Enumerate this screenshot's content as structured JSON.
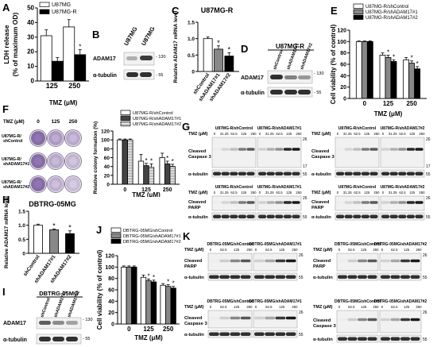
{
  "labels": {
    "A": "A",
    "B": "B",
    "C": "C",
    "D": "D",
    "E": "E",
    "F": "F",
    "G": "G",
    "H": "H",
    "I": "I",
    "J": "J",
    "K": "K"
  },
  "common": {
    "tmz_um": "TMZ (μM)",
    "tmz": "TMZ (μM)",
    "tubulin": "α-tubulin",
    "adam17": "ADAM17",
    "parp": "Cleaved PARP",
    "casp3": "Cleaved Caspase 3"
  },
  "chart_data": [
    {
      "id": "A",
      "type": "bar",
      "ylabel": "LDH release (% of maximum OD)",
      "xlabel": "TMZ (μM)",
      "categories": [
        "125",
        "250"
      ],
      "ylim": [
        0,
        50
      ],
      "yticks": [
        0,
        10,
        20,
        30,
        40,
        50
      ],
      "series": [
        {
          "name": "U87MG",
          "color": "#ffffff",
          "values": [
            31,
            37
          ],
          "err": [
            4,
            5
          ]
        },
        {
          "name": "U87MG-R",
          "color": "#000000",
          "values": [
            13.5,
            18
          ],
          "err": [
            2.5,
            3.5
          ]
        }
      ],
      "stars": [
        "*",
        "*"
      ]
    },
    {
      "id": "C",
      "type": "bar",
      "title": "U87MG-R",
      "ylabel": "Relative ADAM17 mRNA level",
      "categories": [
        "shControl",
        "shADAM17#1",
        "shADAM17#2"
      ],
      "ylim": [
        0,
        1.5
      ],
      "yticks": [
        "0",
        "0.5",
        "1.0",
        "1.5"
      ],
      "values": [
        1.0,
        0.68,
        0.47
      ],
      "err": [
        0.05,
        0.1,
        0.1
      ],
      "colors": [
        "#ffffff",
        "#888888",
        "#000000"
      ],
      "stars": [
        "",
        "*",
        "*"
      ]
    },
    {
      "id": "E",
      "type": "bar",
      "ylabel": "Cell viability (% of control)",
      "xlabel": "TMZ (μM)",
      "categories": [
        "0",
        "125",
        "250"
      ],
      "ylim": [
        0,
        120
      ],
      "yticks": [
        0,
        20,
        40,
        60,
        80,
        100,
        120
      ],
      "series": [
        {
          "name": "U87MG-R/shControl",
          "color": "#ffffff",
          "values": [
            100,
            76,
            68
          ],
          "err": [
            1,
            4,
            4
          ]
        },
        {
          "name": "U87MG-R/shADAM17#1",
          "color": "#888888",
          "values": [
            100,
            72,
            62
          ],
          "err": [
            1,
            4,
            4
          ]
        },
        {
          "name": "U87MG-R/shADAM17#2",
          "color": "#000000",
          "values": [
            100,
            65,
            52
          ],
          "err": [
            1,
            3,
            4
          ]
        }
      ]
    },
    {
      "id": "F",
      "type": "bar",
      "ylabel": "Relative colony formation (%)",
      "xlabel": "TMZ (μM)",
      "categories": [
        "0",
        "125",
        "250"
      ],
      "ylim": [
        0,
        120
      ],
      "yticks": [
        0,
        20,
        40,
        60,
        80,
        100,
        120
      ],
      "series": [
        {
          "name": "U87MG-R/shControl",
          "color": "#ffffff",
          "values": [
            100,
            52,
            60
          ],
          "err": [
            2,
            15,
            10
          ]
        },
        {
          "name": "U87MG-R/shADAM17#1",
          "color": "#444444",
          "values": [
            100,
            42,
            46
          ],
          "err": [
            2,
            5,
            6
          ]
        },
        {
          "name": "U87MG-R/shADAM17#2",
          "color": "#bbbbbb",
          "values": [
            100,
            38,
            40
          ],
          "err": [
            2,
            8,
            5
          ]
        }
      ]
    },
    {
      "id": "H",
      "type": "bar",
      "title": "DBTRG-05MG",
      "ylabel": "Relative ADAM17 mRNA level",
      "categories": [
        "shControl",
        "shADAM17#1",
        "shADAM17#2"
      ],
      "ylim": [
        0,
        1.5
      ],
      "yticks": [
        "0",
        "0.5",
        "1.0",
        "1.5"
      ],
      "values": [
        1.0,
        0.84,
        0.7
      ],
      "err": [
        0.04,
        0.03,
        0.1
      ],
      "colors": [
        "#ffffff",
        "#888888",
        "#000000"
      ],
      "stars": [
        "",
        "*",
        "*"
      ]
    },
    {
      "id": "J",
      "type": "bar",
      "ylabel": "Cell viability (% of control)",
      "xlabel": "TMZ (μM)",
      "categories": [
        "0",
        "125",
        "250"
      ],
      "ylim": [
        0,
        120
      ],
      "yticks": [
        0,
        20,
        40,
        60,
        80,
        100,
        120
      ],
      "series": [
        {
          "name": "DBTRG-05MG/shControl",
          "color": "#ffffff",
          "values": [
            100,
            82,
            68
          ],
          "err": [
            2,
            4,
            3
          ]
        },
        {
          "name": "DBTRG-05MG/shADAM17#1",
          "color": "#888888",
          "values": [
            100,
            76,
            66
          ],
          "err": [
            2,
            3,
            3
          ]
        },
        {
          "name": "DBTRG-05MG/shADAM17#2",
          "color": "#000000",
          "values": [
            100,
            74,
            63
          ],
          "err": [
            2,
            3,
            3
          ]
        }
      ]
    }
  ],
  "B": {
    "lanes": [
      "U87MG",
      "U87MG-R"
    ],
    "mw": [
      "130",
      "55"
    ]
  },
  "D": {
    "title": "U87MG-R",
    "lanes": [
      "shControl",
      "shADAM17#1",
      "shADAM17#2"
    ],
    "mw": [
      "130",
      "55"
    ]
  },
  "F_plates": {
    "tmz_label": "TMZ (μM)",
    "cols": [
      "0",
      "125",
      "250"
    ],
    "rows": [
      "U87MG-R/ shControl",
      "U87MG-R/ shADAM17#1",
      "U87MG-R/ shADAM17#2"
    ]
  },
  "G": {
    "conc": [
      "0",
      "31.25",
      "62.5",
      "125",
      "250"
    ],
    "blots": [
      {
        "left": "U87MG-R/shControl",
        "right": "U87MG-R/shADAM17#1",
        "rows": [
          "Cleaved Caspase 3",
          "α-tubulin"
        ],
        "mw": [
          "26",
          "17",
          "55"
        ]
      },
      {
        "left": "U87MG-R/shControl",
        "right": "U87MG-R/shADAM17#2",
        "rows": [
          "Cleaved Caspase 3",
          "α-tubulin"
        ],
        "mw": [
          "26",
          "17",
          "55"
        ]
      },
      {
        "left": "U87MG-R/shControl",
        "right": "U87MG-R/shADAM17#1",
        "rows": [
          "Cleaved PARP",
          "α-tubulin"
        ],
        "mw": [
          "26",
          "55"
        ]
      },
      {
        "left": "U87MG-R/shControl",
        "right": "U87MG-R/shADAM17#2",
        "rows": [
          "Cleaved PARP",
          "α-tubulin"
        ],
        "mw": [
          "26",
          "55"
        ]
      }
    ]
  },
  "I": {
    "title": "DBTRG-05MG",
    "lanes": [
      "shControl",
      "shADAM17#1",
      "shADAM17#2"
    ],
    "mw": [
      "130",
      "55"
    ]
  },
  "K": {
    "conc": [
      "0",
      "62.5",
      "125",
      "250"
    ],
    "blots": [
      {
        "left": "DBTRG-05MG/shControl",
        "right": "DBTRG-05MG/shADAM17#1",
        "rows": [
          "Cleaved PARP",
          "α-tubulin"
        ],
        "mw": [
          "26",
          "55"
        ]
      },
      {
        "left": "DBTRG-05MG/shControl",
        "right": "DBTRG-05MG/shADAM17#2",
        "rows": [
          "Cleaved PARP",
          "α-tubulin"
        ],
        "mw": [
          "26",
          "55"
        ]
      },
      {
        "left": "DBTRG-05MG/shControl",
        "right": "DBTRG-05MG/shADAM17#1",
        "rows": [
          "Cleaved Caspase 3",
          "α-tubulin"
        ],
        "mw": [
          "26",
          "55"
        ]
      },
      {
        "left": "DBTRG-05MG/shControl",
        "right": "DBTRG-05MG/shADAM17#2",
        "rows": [
          "Cleaved Caspase 3",
          "α-tubulin"
        ],
        "mw": [
          "26",
          "55"
        ]
      }
    ]
  }
}
